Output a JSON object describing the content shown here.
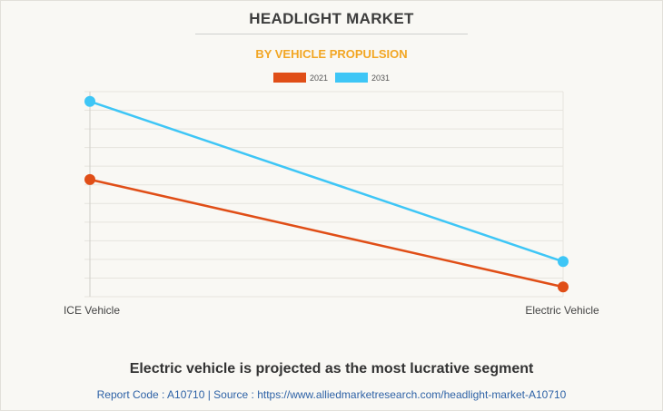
{
  "title": "HEADLIGHT MARKET",
  "subtitle": "BY VEHICLE PROPULSION",
  "headline": "Electric vehicle is projected as the most lucrative segment",
  "footer": "Report Code : A10710  |  Source : https://www.alliedmarketresearch.com/headlight-market-A10710",
  "chart_data": {
    "type": "line",
    "title": "HEADLIGHT MARKET",
    "subtitle": "BY VEHICLE PROPULSION",
    "categories": [
      "ICE Vehicle",
      "Electric Vehicle"
    ],
    "series": [
      {
        "name": "2021",
        "color": "#e04e17",
        "values": [
          0.6,
          0.05
        ]
      },
      {
        "name": "2031",
        "color": "#3ec6f6",
        "values": [
          1.0,
          0.18
        ]
      }
    ],
    "ylim": [
      0,
      1.05
    ],
    "y_tick_labels_shown": false,
    "grid": true,
    "legend_position": "top-center",
    "xlabel": "",
    "ylabel": ""
  }
}
